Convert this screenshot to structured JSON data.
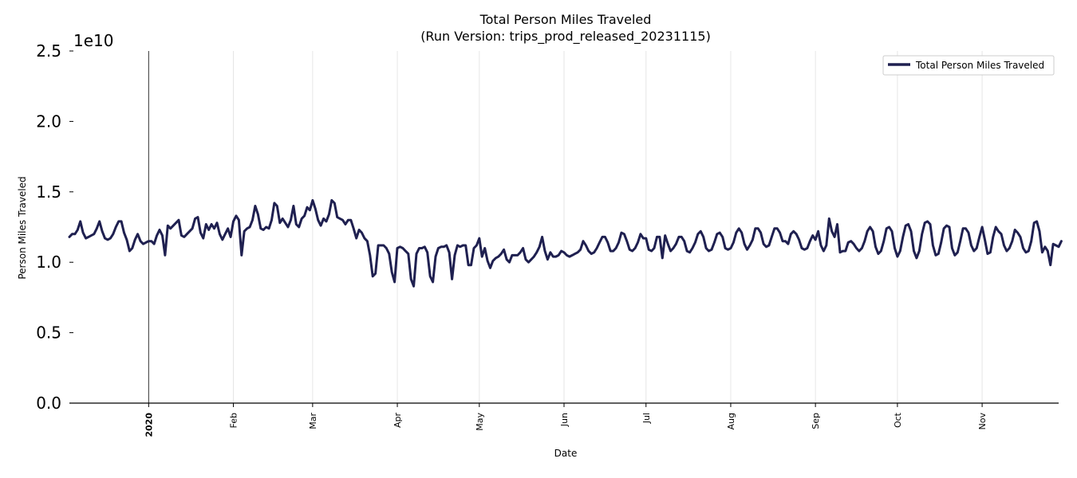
{
  "chart_data": {
    "type": "line",
    "title": "Total Person Miles Traveled",
    "subtitle": "(Run Version: trips_prod_released_20231115)",
    "xlabel": "Date",
    "ylabel": "Person Miles Traveled",
    "y_offset_label": "1e10",
    "ylim": [
      0,
      2.5
    ],
    "y_scale": 10000000000.0,
    "yticks": [
      "0.0",
      "0.5",
      "1.0",
      "1.5",
      "2.0",
      "2.5"
    ],
    "xlim": [
      "2019-12-03",
      "2020-11-29"
    ],
    "xticks": [
      {
        "label": "2020",
        "date": "2020-01-01",
        "bold": true
      },
      {
        "label": "Feb",
        "date": "2020-02-01"
      },
      {
        "label": "Mar",
        "date": "2020-03-01"
      },
      {
        "label": "Apr",
        "date": "2020-04-01"
      },
      {
        "label": "May",
        "date": "2020-05-01"
      },
      {
        "label": "Jun",
        "date": "2020-06-01"
      },
      {
        "label": "Jul",
        "date": "2020-07-01"
      },
      {
        "label": "Aug",
        "date": "2020-08-01"
      },
      {
        "label": "Sep",
        "date": "2020-09-01"
      },
      {
        "label": "Oct",
        "date": "2020-10-01"
      },
      {
        "label": "Nov",
        "date": "2020-11-01"
      }
    ],
    "grid": "vertical",
    "legend": {
      "position": "top-right",
      "entries": [
        "Total Person Miles Traveled"
      ]
    },
    "series": [
      {
        "name": "Total Person Miles Traveled",
        "color": "#1f2050",
        "x_start": "2019-12-03",
        "x_step_days": 1,
        "values": [
          1.18,
          1.2,
          1.2,
          1.23,
          1.29,
          1.21,
          1.17,
          1.18,
          1.19,
          1.2,
          1.24,
          1.29,
          1.22,
          1.17,
          1.16,
          1.17,
          1.2,
          1.25,
          1.29,
          1.29,
          1.21,
          1.16,
          1.08,
          1.1,
          1.16,
          1.2,
          1.15,
          1.13,
          1.14,
          1.15,
          1.15,
          1.13,
          1.19,
          1.23,
          1.19,
          1.05,
          1.26,
          1.24,
          1.26,
          1.28,
          1.3,
          1.19,
          1.18,
          1.2,
          1.22,
          1.24,
          1.31,
          1.32,
          1.21,
          1.17,
          1.27,
          1.23,
          1.27,
          1.24,
          1.28,
          1.2,
          1.16,
          1.2,
          1.24,
          1.18,
          1.29,
          1.33,
          1.3,
          1.05,
          1.22,
          1.24,
          1.25,
          1.3,
          1.4,
          1.34,
          1.24,
          1.23,
          1.25,
          1.24,
          1.3,
          1.42,
          1.4,
          1.28,
          1.31,
          1.28,
          1.25,
          1.3,
          1.4,
          1.27,
          1.25,
          1.31,
          1.33,
          1.39,
          1.37,
          1.44,
          1.38,
          1.3,
          1.26,
          1.31,
          1.29,
          1.34,
          1.44,
          1.42,
          1.32,
          1.31,
          1.3,
          1.27,
          1.3,
          1.3,
          1.24,
          1.17,
          1.23,
          1.21,
          1.17,
          1.15,
          1.05,
          0.9,
          0.92,
          1.12,
          1.12,
          1.12,
          1.1,
          1.06,
          0.93,
          0.86,
          1.1,
          1.11,
          1.1,
          1.08,
          1.06,
          0.88,
          0.83,
          1.06,
          1.1,
          1.1,
          1.11,
          1.07,
          0.9,
          0.86,
          1.04,
          1.1,
          1.11,
          1.11,
          1.12,
          1.07,
          0.88,
          1.05,
          1.12,
          1.11,
          1.12,
          1.12,
          0.98,
          0.98,
          1.1,
          1.12,
          1.17,
          1.04,
          1.1,
          1.01,
          0.96,
          1.01,
          1.03,
          1.04,
          1.06,
          1.09,
          1.02,
          1.0,
          1.05,
          1.05,
          1.05,
          1.07,
          1.1,
          1.02,
          1.0,
          1.02,
          1.04,
          1.07,
          1.11,
          1.18,
          1.08,
          1.02,
          1.07,
          1.04,
          1.04,
          1.05,
          1.08,
          1.07,
          1.05,
          1.04,
          1.05,
          1.06,
          1.07,
          1.09,
          1.15,
          1.12,
          1.08,
          1.06,
          1.07,
          1.1,
          1.14,
          1.18,
          1.18,
          1.14,
          1.08,
          1.08,
          1.1,
          1.14,
          1.21,
          1.2,
          1.15,
          1.09,
          1.08,
          1.1,
          1.14,
          1.2,
          1.17,
          1.17,
          1.09,
          1.08,
          1.1,
          1.18,
          1.18,
          1.03,
          1.19,
          1.13,
          1.08,
          1.1,
          1.13,
          1.18,
          1.18,
          1.15,
          1.08,
          1.07,
          1.1,
          1.14,
          1.2,
          1.22,
          1.18,
          1.1,
          1.08,
          1.09,
          1.14,
          1.2,
          1.21,
          1.18,
          1.1,
          1.09,
          1.1,
          1.14,
          1.21,
          1.24,
          1.21,
          1.13,
          1.09,
          1.12,
          1.16,
          1.24,
          1.24,
          1.21,
          1.13,
          1.11,
          1.12,
          1.18,
          1.24,
          1.24,
          1.21,
          1.15,
          1.15,
          1.13,
          1.2,
          1.22,
          1.2,
          1.16,
          1.1,
          1.09,
          1.1,
          1.15,
          1.19,
          1.16,
          1.22,
          1.12,
          1.08,
          1.12,
          1.31,
          1.22,
          1.18,
          1.27,
          1.07,
          1.08,
          1.08,
          1.14,
          1.15,
          1.13,
          1.1,
          1.08,
          1.1,
          1.15,
          1.22,
          1.25,
          1.22,
          1.11,
          1.06,
          1.08,
          1.15,
          1.24,
          1.25,
          1.22,
          1.1,
          1.04,
          1.08,
          1.18,
          1.26,
          1.27,
          1.22,
          1.08,
          1.03,
          1.08,
          1.2,
          1.28,
          1.29,
          1.27,
          1.12,
          1.05,
          1.06,
          1.14,
          1.24,
          1.26,
          1.25,
          1.1,
          1.05,
          1.07,
          1.15,
          1.24,
          1.24,
          1.21,
          1.12,
          1.08,
          1.1,
          1.18,
          1.25,
          1.16,
          1.06,
          1.07,
          1.18,
          1.25,
          1.22,
          1.2,
          1.12,
          1.08,
          1.1,
          1.15,
          1.23,
          1.21,
          1.18,
          1.1,
          1.07,
          1.08,
          1.15,
          1.28,
          1.29,
          1.22,
          1.07,
          1.11,
          1.08,
          0.98,
          1.13,
          1.12,
          1.11,
          1.15
        ]
      }
    ]
  }
}
